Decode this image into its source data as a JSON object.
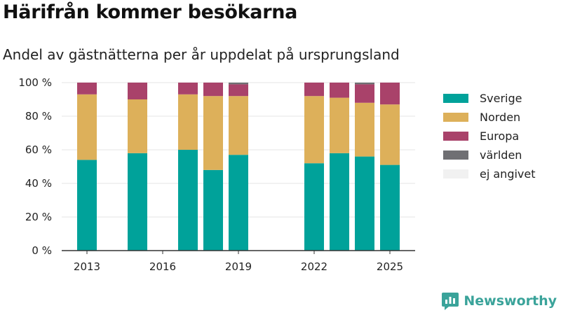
{
  "header": {
    "title": "Härifrån kommer besökarna",
    "subtitle": "Andel av gästnätterna per år uppdelat på ursprungsland"
  },
  "brand": {
    "name": "Newsworthy",
    "accent": "#3aa39a"
  },
  "chart_data": {
    "type": "bar",
    "stacked": true,
    "x": [
      2013,
      2015,
      2017,
      2018,
      2019,
      2022,
      2023,
      2024,
      2025
    ],
    "xticks": [
      2013,
      2016,
      2019,
      2022,
      2025
    ],
    "xlim": [
      2012,
      2026
    ],
    "ylim": [
      0,
      100
    ],
    "yticks": [
      0,
      20,
      40,
      60,
      80,
      100
    ],
    "ytick_labels": [
      "0 %",
      "20 %",
      "40 %",
      "60 %",
      "80 %",
      "100 %"
    ],
    "grid": true,
    "legend_position": "right",
    "series": [
      {
        "name": "Sverige",
        "color": "#00a29a",
        "values": [
          54,
          58,
          60,
          48,
          57,
          52,
          58,
          56,
          51
        ]
      },
      {
        "name": "Norden",
        "color": "#ddb05a",
        "values": [
          39,
          32,
          33,
          44,
          35,
          40,
          33,
          32,
          36
        ]
      },
      {
        "name": "Europa",
        "color": "#a9426a",
        "values": [
          7,
          10,
          7,
          8,
          7,
          8,
          9,
          11,
          13
        ]
      },
      {
        "name": "världen",
        "color": "#6f6f73",
        "values": [
          0,
          0,
          0,
          0,
          1,
          0,
          0,
          1,
          0
        ]
      },
      {
        "name": "ej angivet",
        "color": "#f1f1f1",
        "values": [
          0,
          0,
          0,
          0,
          0,
          0,
          0,
          0,
          0
        ]
      }
    ]
  }
}
